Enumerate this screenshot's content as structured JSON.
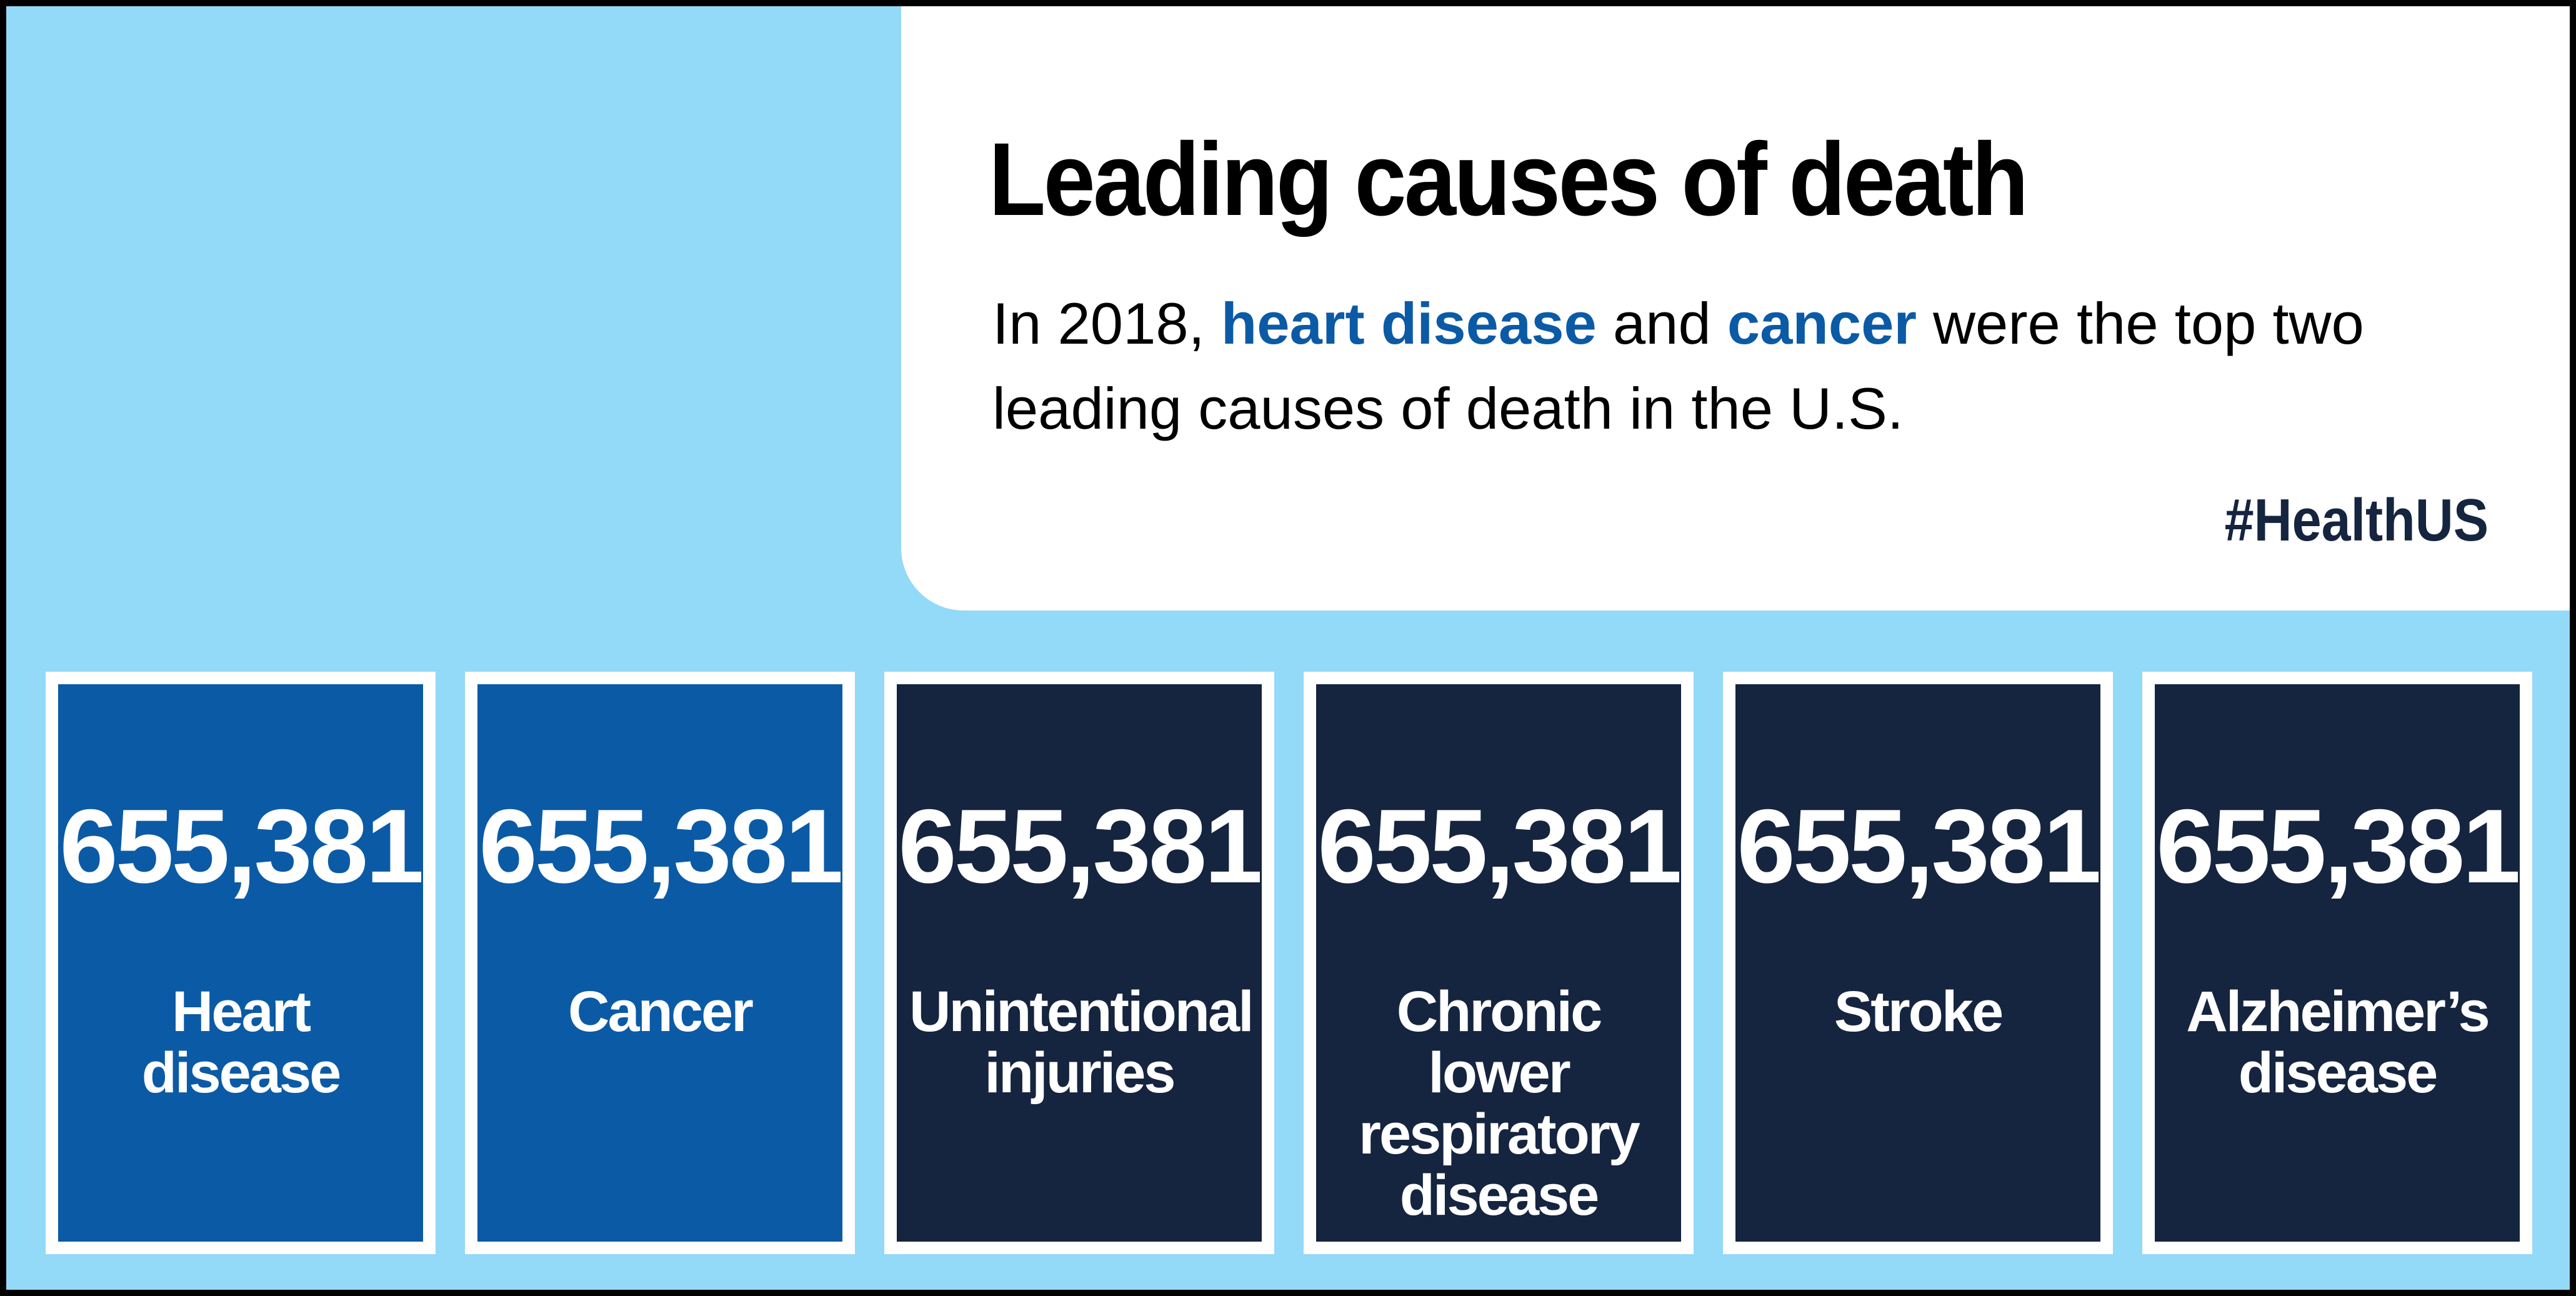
{
  "header": {
    "title": "Leading causes of death",
    "subtitle": {
      "prefix": "In 2018, ",
      "highlight_1": "heart disease",
      "middle": " and ",
      "highlight_2": "cancer",
      "suffix": " were the top two leading causes of death in the U.S."
    },
    "hashtag": "#HealthUS"
  },
  "colors": {
    "background": "#93d9f8",
    "card_primary": "#0b5aa6",
    "card_secondary": "#15243f",
    "highlight_text": "#0b5aa6",
    "border": "#ffffff"
  },
  "causes": [
    {
      "value": "655,381",
      "label": "Heart disease",
      "color": "#0b5aa6"
    },
    {
      "value": "655,381",
      "label": "Cancer",
      "color": "#0b5aa6"
    },
    {
      "value": "655,381",
      "label": "Unintentional injuries",
      "color": "#15243f"
    },
    {
      "value": "655,381",
      "label": "Chronic lower respiratory disease",
      "color": "#15243f"
    },
    {
      "value": "655,381",
      "label": "Stroke",
      "color": "#15243f"
    },
    {
      "value": "655,381",
      "label": "Alzheimer’s disease",
      "color": "#15243f"
    }
  ]
}
